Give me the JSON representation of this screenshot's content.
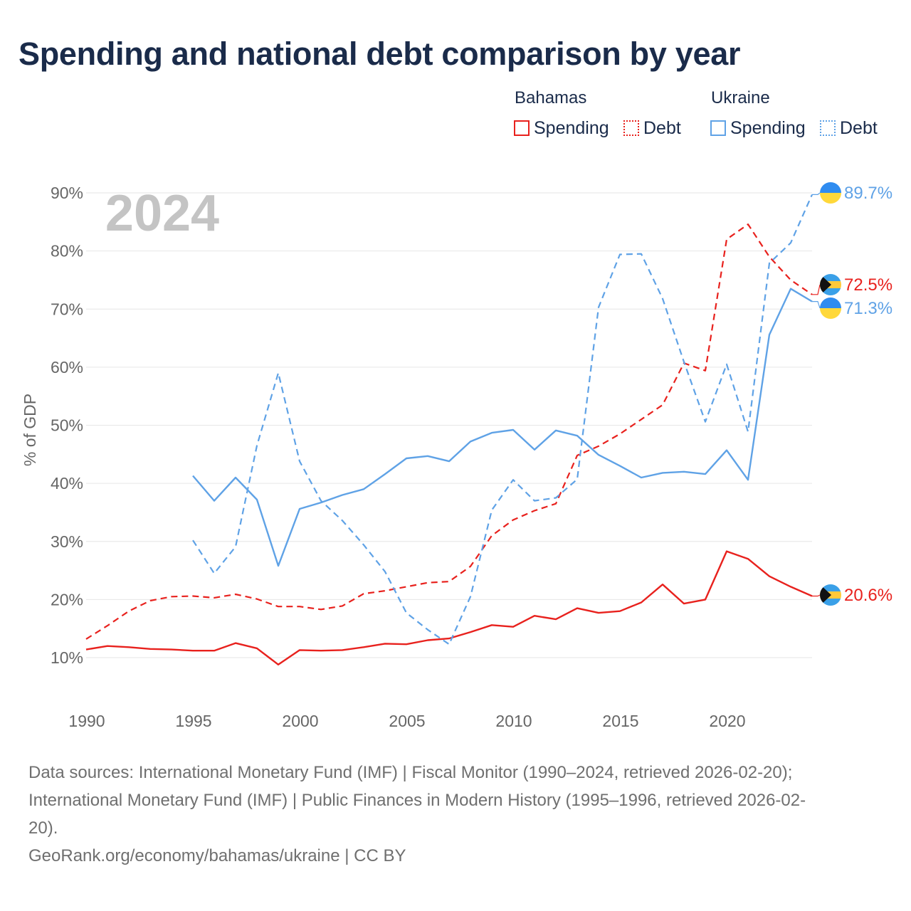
{
  "title": "Spending and national debt comparison by year",
  "legend": {
    "groups": [
      {
        "name": "Bahamas",
        "items": [
          {
            "label": "Spending",
            "color": "#e8211d",
            "style": "solid"
          },
          {
            "label": "Debt",
            "color": "#e8211d",
            "style": "dotted"
          }
        ]
      },
      {
        "name": "Ukraine",
        "items": [
          {
            "label": "Spending",
            "color": "#5fa2e6",
            "style": "solid"
          },
          {
            "label": "Debt",
            "color": "#5fa2e6",
            "style": "dotted"
          }
        ]
      }
    ]
  },
  "chart_data": {
    "type": "line",
    "year_label": "2024",
    "ylabel": "% of GDP",
    "xlabel": "",
    "xlim": [
      1990,
      2024
    ],
    "ylim": [
      0,
      90
    ],
    "x_ticks": [
      "1990",
      "1995",
      "2000",
      "2005",
      "2010",
      "2015",
      "2020"
    ],
    "y_ticks": [
      "10%",
      "20%",
      "30%",
      "40%",
      "50%",
      "60%",
      "70%",
      "80%",
      "90%"
    ],
    "series": [
      {
        "name": "Bahamas Spending",
        "country": "Bahamas",
        "measure": "Spending",
        "color": "#e8211d",
        "dash": "solid",
        "end_label": "20.6%",
        "x": [
          1990,
          1991,
          1992,
          1993,
          1994,
          1995,
          1996,
          1997,
          1998,
          1999,
          2000,
          2001,
          2002,
          2003,
          2004,
          2005,
          2006,
          2007,
          2008,
          2009,
          2010,
          2011,
          2012,
          2013,
          2014,
          2015,
          2016,
          2017,
          2018,
          2019,
          2020,
          2021,
          2022,
          2023,
          2024
        ],
        "values": [
          11.4,
          12.0,
          11.8,
          11.5,
          11.4,
          11.2,
          11.2,
          12.5,
          11.6,
          8.8,
          11.3,
          11.2,
          11.3,
          11.8,
          12.4,
          12.3,
          13.0,
          13.3,
          14.4,
          15.6,
          15.3,
          17.2,
          16.6,
          18.5,
          17.7,
          18.0,
          19.5,
          22.6,
          19.3,
          20.0,
          28.3,
          27.0,
          24.0,
          22.2,
          20.6
        ]
      },
      {
        "name": "Bahamas Debt",
        "country": "Bahamas",
        "measure": "Debt",
        "color": "#e8211d",
        "dash": "dashed",
        "end_label": "72.5%",
        "x": [
          1990,
          1991,
          1992,
          1993,
          1994,
          1995,
          1996,
          1997,
          1998,
          1999,
          2000,
          2001,
          2002,
          2003,
          2004,
          2005,
          2006,
          2007,
          2008,
          2009,
          2010,
          2011,
          2012,
          2013,
          2014,
          2015,
          2016,
          2017,
          2018,
          2019,
          2020,
          2021,
          2022,
          2023,
          2024
        ],
        "values": [
          13.2,
          15.5,
          18.0,
          19.8,
          20.5,
          20.6,
          20.3,
          20.9,
          20.1,
          18.8,
          18.8,
          18.3,
          18.9,
          21.0,
          21.5,
          22.2,
          22.9,
          23.1,
          25.7,
          31.0,
          33.7,
          35.3,
          36.5,
          44.8,
          46.4,
          48.5,
          51.0,
          53.5,
          60.7,
          59.4,
          82.0,
          84.6,
          79.0,
          75.0,
          72.5
        ]
      },
      {
        "name": "Ukraine Spending",
        "country": "Ukraine",
        "measure": "Spending",
        "color": "#5fa2e6",
        "dash": "solid",
        "end_label": "71.3%",
        "x": [
          1995,
          1996,
          1997,
          1998,
          1999,
          2000,
          2001,
          2002,
          2003,
          2004,
          2005,
          2006,
          2007,
          2008,
          2009,
          2010,
          2011,
          2012,
          2013,
          2014,
          2015,
          2016,
          2017,
          2018,
          2019,
          2020,
          2021,
          2022,
          2023,
          2024
        ],
        "values": [
          41.3,
          37.0,
          41.0,
          37.2,
          25.8,
          35.6,
          36.7,
          38.0,
          39.0,
          41.6,
          44.3,
          44.7,
          43.8,
          47.2,
          48.7,
          49.2,
          45.8,
          49.1,
          48.2,
          44.9,
          43.0,
          41.0,
          41.8,
          42.0,
          41.6,
          45.7,
          40.6,
          65.6,
          73.5,
          71.3
        ]
      },
      {
        "name": "Ukraine Debt",
        "country": "Ukraine",
        "measure": "Debt",
        "color": "#5fa2e6",
        "dash": "dashed",
        "end_label": "89.7%",
        "x": [
          1995,
          1996,
          1997,
          1998,
          1999,
          2000,
          2001,
          2002,
          2003,
          2004,
          2005,
          2006,
          2007,
          2008,
          2009,
          2010,
          2011,
          2012,
          2013,
          2014,
          2015,
          2016,
          2017,
          2018,
          2019,
          2020,
          2021,
          2022,
          2023,
          2024
        ],
        "values": [
          30.2,
          24.5,
          29.1,
          46.5,
          59.0,
          43.8,
          37.0,
          33.6,
          29.4,
          24.8,
          17.7,
          14.8,
          12.3,
          20.5,
          35.4,
          40.6,
          37.0,
          37.5,
          40.7,
          70.3,
          79.4,
          79.5,
          71.8,
          60.9,
          50.6,
          60.5,
          48.9,
          77.9,
          81.4,
          89.7
        ]
      }
    ],
    "flags": {
      "Bahamas": "bahamas-flag-icon",
      "Ukraine": "ukraine-flag-icon"
    }
  },
  "footer": {
    "sources_line1": "Data sources: International Monetary Fund (IMF) | Fiscal Monitor (1990–2024, retrieved 2026-02-20);",
    "sources_line2": "International Monetary Fund (IMF) | Public Finances in Modern History (1995–1996, retrieved 2026-02-",
    "sources_line3": "20).",
    "credit": "GeoRank.org/economy/bahamas/ukraine | CC BY"
  }
}
